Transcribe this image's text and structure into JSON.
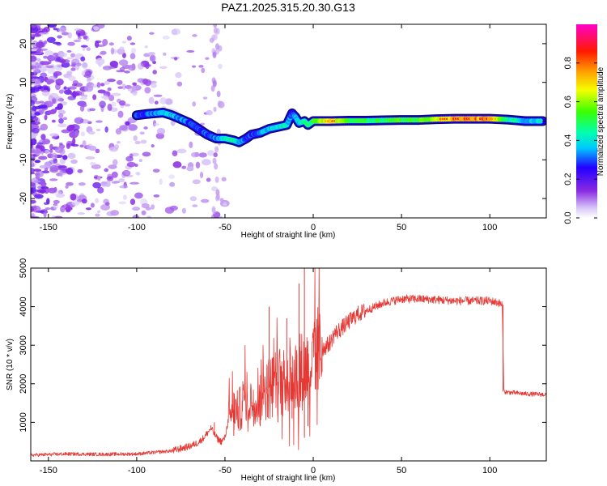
{
  "title": "PAZ1.2025.315.20.30.G13",
  "colors": {
    "snr_line": "#e53935",
    "track_dark": "#0b0b6b",
    "frame": "#000000",
    "noise": "#8a2be2"
  },
  "chart_data": [
    {
      "id": "spectrogram",
      "type": "heatmap",
      "xlabel": "Height of straight line (km)",
      "ylabel": "Frequency (Hz)",
      "xlim": [
        -160,
        132
      ],
      "ylim": [
        -25,
        25
      ],
      "xticks": [
        -150,
        -100,
        -50,
        0,
        50,
        100
      ],
      "yticks": [
        -20,
        -10,
        0,
        10,
        20
      ],
      "colorbar": {
        "label": "Normalized spectral amplitude",
        "range": [
          0.0,
          1.0
        ],
        "ticks": [
          0.0,
          0.2,
          0.4,
          0.6,
          0.8
        ],
        "tick_labels": [
          "0.0",
          "0.2",
          "0.4",
          "0.6",
          "0.8"
        ],
        "colormap": "purple-blue-cyan-green-yellow-orange-red-magenta"
      },
      "ridge": {
        "x": [
          -100,
          -95,
          -90,
          -85,
          -80,
          -75,
          -70,
          -65,
          -60,
          -55,
          -50,
          -45,
          -42,
          -38,
          -35,
          -30,
          -25,
          -20,
          -15,
          -12,
          -10,
          -8,
          -5,
          -3,
          0,
          5,
          10,
          20,
          30,
          40,
          50,
          60,
          70,
          80,
          90,
          100,
          105,
          110,
          120,
          130
        ],
        "y": [
          1.5,
          1.8,
          2.0,
          2.2,
          1.5,
          0.5,
          -0.5,
          -2.0,
          -3.5,
          -4.5,
          -4.5,
          -5.0,
          -5.5,
          -4.5,
          -3.5,
          -3.0,
          -2.0,
          -1.5,
          -1.0,
          2.0,
          1.0,
          -0.5,
          0.0,
          -1.0,
          0.0,
          0.0,
          0.0,
          0.1,
          0.1,
          0.2,
          0.3,
          0.3,
          0.5,
          0.6,
          0.6,
          0.6,
          0.5,
          0.4,
          0.0,
          0.0
        ],
        "amplitude": [
          0.3,
          0.3,
          0.35,
          0.4,
          0.4,
          0.35,
          0.3,
          0.3,
          0.3,
          0.35,
          0.45,
          0.5,
          0.4,
          0.3,
          0.3,
          0.35,
          0.4,
          0.45,
          0.45,
          0.3,
          0.4,
          0.4,
          0.5,
          0.5,
          0.55,
          0.7,
          0.8,
          0.6,
          0.55,
          0.55,
          0.6,
          0.6,
          0.75,
          0.85,
          0.85,
          0.85,
          0.7,
          0.5,
          0.4,
          0.4
        ]
      }
    },
    {
      "id": "snr",
      "type": "line",
      "xlabel": "Height of straight line (km)",
      "ylabel": "SNR (10 * v/v)",
      "xlim": [
        -160,
        132
      ],
      "ylim": [
        0,
        5000
      ],
      "xticks": [
        -150,
        -100,
        -50,
        0,
        50,
        100
      ],
      "yticks": [
        1000,
        2000,
        3000,
        4000,
        5000
      ],
      "series": [
        {
          "name": "SNR",
          "x": [
            -160,
            -140,
            -120,
            -100,
            -90,
            -80,
            -75,
            -70,
            -65,
            -62,
            -60,
            -58,
            -56,
            -54,
            -52,
            -50,
            -48,
            -46,
            -44,
            -42,
            -40,
            -38,
            -35,
            -32,
            -30,
            -28,
            -25,
            -22,
            -20,
            -18,
            -15,
            -12,
            -10,
            -8,
            -6,
            -5,
            -4,
            -2,
            0,
            2,
            5,
            8,
            10,
            12,
            15,
            20,
            25,
            30,
            35,
            40,
            45,
            50,
            60,
            70,
            80,
            90,
            100,
            105,
            107,
            108,
            110,
            115,
            120,
            125,
            132
          ],
          "y": [
            150,
            180,
            170,
            180,
            220,
            260,
            320,
            380,
            480,
            600,
            720,
            850,
            700,
            560,
            500,
            600,
            1100,
            1400,
            1250,
            1300,
            1500,
            1650,
            1550,
            1750,
            1800,
            1900,
            1900,
            2000,
            2050,
            2100,
            2150,
            2300,
            2200,
            2250,
            2350,
            2300,
            2450,
            2500,
            2600,
            2800,
            2900,
            3000,
            3100,
            3300,
            3400,
            3600,
            3800,
            3900,
            4000,
            4100,
            4150,
            4200,
            4200,
            4180,
            4150,
            4150,
            4150,
            4100,
            4050,
            1800,
            1780,
            1760,
            1740,
            1730,
            1720
          ],
          "spikes": [
            [
              -56,
              1000
            ],
            [
              -25,
              4000
            ],
            [
              -15,
              3700
            ],
            [
              -8,
              4600
            ],
            [
              -5,
              5000
            ],
            [
              -5,
              600
            ],
            [
              -12,
              1100
            ],
            [
              -3,
              900
            ],
            [
              5,
              2300
            ],
            [
              3,
              3500
            ],
            [
              -30,
              900
            ],
            [
              -20,
              1000
            ],
            [
              -45,
              650
            ]
          ]
        }
      ]
    }
  ]
}
